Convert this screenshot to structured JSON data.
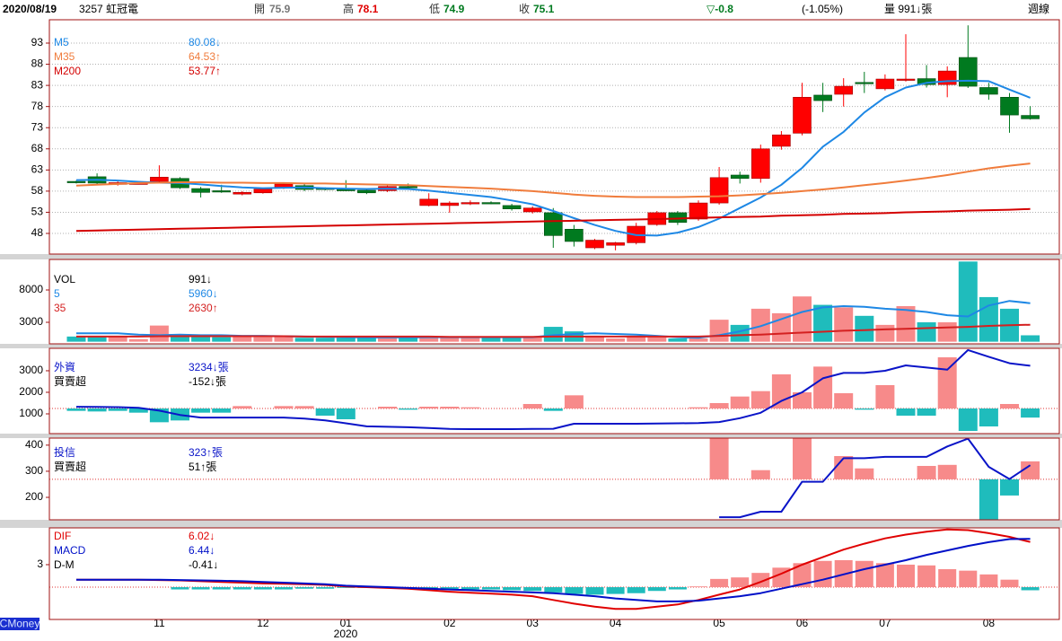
{
  "header": {
    "date": "2020/08/19",
    "stock": "3257 虹冠電",
    "open_label": "開",
    "high_label": "高",
    "low_label": "低",
    "close_label": "收",
    "change": "▽-0.8",
    "change_pct": "(-1.05%)",
    "volume": "量 991↓張",
    "period": "週線"
  },
  "brand": "CMoney",
  "chart_data": [
    {
      "type": "candlestick",
      "year_label": "2020",
      "categories": [
        null,
        null,
        null,
        null,
        "11",
        null,
        null,
        null,
        null,
        "12",
        null,
        null,
        null,
        "01",
        null,
        null,
        null,
        null,
        "02",
        null,
        null,
        null,
        "03",
        null,
        null,
        null,
        "04",
        null,
        null,
        null,
        null,
        "05",
        null,
        null,
        null,
        "06",
        null,
        null,
        null,
        "07",
        null,
        null,
        null,
        null,
        "08",
        null,
        null
      ],
      "open": [
        60.3,
        61.4,
        59.6,
        59.8,
        60.3,
        61.0,
        58.6,
        58.1,
        57.3,
        57.6,
        58.8,
        59.3,
        58.7,
        58.4,
        58.2,
        58.1,
        59.1,
        54.6,
        54.6,
        55.1,
        55.3,
        54.6,
        53.1,
        52.9,
        49.0,
        44.6,
        45.2,
        45.8,
        50.1,
        52.9,
        51.4,
        55.2,
        61.8,
        61.0,
        68.6,
        71.7,
        80.7,
        80.9,
        83.7,
        82.2,
        84.3,
        84.6,
        83.2,
        89.6,
        82.5,
        80.2,
        75.9
      ],
      "high": [
        60.5,
        62.2,
        60.3,
        60.1,
        64.1,
        61.3,
        59.0,
        59.5,
        58.0,
        58.8,
        60.0,
        59.7,
        58.9,
        60.6,
        58.6,
        59.4,
        59.8,
        57.5,
        55.6,
        55.8,
        55.6,
        55.0,
        54.4,
        54.0,
        50.0,
        46.7,
        46.0,
        50.5,
        53.3,
        53.3,
        55.8,
        63.7,
        62.6,
        69.0,
        72.2,
        83.6,
        83.6,
        84.7,
        86.2,
        85.6,
        95.1,
        87.8,
        87.5,
        97.2,
        83.6,
        81.2,
        78.1
      ],
      "low": [
        59.8,
        59.5,
        59.3,
        59.6,
        60.0,
        58.5,
        56.5,
        57.6,
        57.0,
        57.4,
        58.5,
        58.0,
        58.2,
        58.0,
        57.3,
        57.8,
        58.5,
        54.4,
        52.9,
        54.7,
        54.9,
        53.4,
        52.7,
        44.6,
        44.9,
        44.3,
        44.0,
        45.4,
        49.8,
        50.0,
        51.0,
        54.8,
        59.8,
        60.0,
        67.8,
        71.2,
        76.7,
        78.0,
        81.2,
        81.8,
        83.9,
        82.5,
        80.2,
        82.4,
        79.6,
        71.8,
        74.9
      ],
      "close": [
        60.0,
        59.9,
        60.0,
        59.9,
        61.3,
        58.8,
        57.7,
        58.0,
        57.7,
        58.5,
        59.7,
        58.4,
        58.5,
        58.3,
        57.6,
        59.1,
        58.8,
        56.1,
        55.2,
        55.3,
        55.1,
        53.8,
        54.0,
        47.5,
        46.1,
        46.4,
        45.8,
        49.7,
        52.9,
        50.6,
        55.2,
        61.2,
        61.0,
        68.0,
        71.3,
        80.2,
        79.4,
        82.8,
        83.5,
        84.5,
        84.5,
        83.2,
        86.4,
        82.8,
        80.9,
        76.0,
        75.1
      ],
      "up_color": "#ff0000",
      "down_color": "#007a1f",
      "series": [
        {
          "name": "M5",
          "kind": "line",
          "color": "#1e88e5",
          "legend_value": "80.08↓",
          "values": [
            60.6,
            60.7,
            60.5,
            60.2,
            60.0,
            59.9,
            59.6,
            59.2,
            58.9,
            58.7,
            58.8,
            58.9,
            58.7,
            58.6,
            58.5,
            58.6,
            58.5,
            58.1,
            57.6,
            57.1,
            56.6,
            55.8,
            54.9,
            53.3,
            51.6,
            50.0,
            48.6,
            47.6,
            47.5,
            48.2,
            49.5,
            51.5,
            54.0,
            56.5,
            59.5,
            63.5,
            68.5,
            72.0,
            76.6,
            80.2,
            82.5,
            83.6,
            84.0,
            84.1,
            84.0,
            82.0,
            80.08
          ]
        },
        {
          "name": "M35",
          "kind": "line",
          "color": "#f07c3c",
          "legend_value": "64.53↑",
          "values": [
            59.3,
            59.5,
            59.7,
            59.9,
            60.0,
            60.1,
            60.1,
            60.0,
            60.0,
            59.9,
            59.9,
            59.8,
            59.8,
            59.7,
            59.6,
            59.5,
            59.4,
            59.2,
            59.0,
            58.8,
            58.6,
            58.3,
            58.0,
            57.6,
            57.2,
            56.9,
            56.7,
            56.6,
            56.6,
            56.6,
            56.7,
            56.8,
            57.0,
            57.3,
            57.6,
            58.0,
            58.4,
            58.9,
            59.4,
            59.9,
            60.5,
            61.1,
            61.8,
            62.6,
            63.4,
            64.0,
            64.53
          ]
        },
        {
          "name": "M200",
          "kind": "line",
          "color": "#d40000",
          "legend_value": "53.77↑",
          "values": [
            48.6,
            48.7,
            48.8,
            48.9,
            49.0,
            49.1,
            49.2,
            49.3,
            49.4,
            49.5,
            49.6,
            49.7,
            49.8,
            49.9,
            50.0,
            50.1,
            50.2,
            50.3,
            50.4,
            50.5,
            50.6,
            50.7,
            50.8,
            50.9,
            51.0,
            51.1,
            51.2,
            51.3,
            51.4,
            51.5,
            51.7,
            51.8,
            51.9,
            52.0,
            52.2,
            52.3,
            52.4,
            52.6,
            52.7,
            52.8,
            53.0,
            53.1,
            53.2,
            53.4,
            53.5,
            53.6,
            53.77
          ]
        }
      ],
      "ylim": [
        43.12,
        98.52
      ],
      "yticks": [
        48,
        53,
        58,
        63,
        68,
        73,
        78,
        83,
        88,
        93
      ],
      "grid": true
    },
    {
      "type": "volume",
      "series": [
        {
          "name": "VOL",
          "kind": "bar",
          "up_color": "#f78a8a",
          "down_color": "#1fbcbc",
          "legend_value": "991↓",
          "values": [
            800,
            800,
            800,
            400,
            2500,
            900,
            900,
            700,
            900,
            700,
            800,
            600,
            600,
            600,
            600,
            700,
            600,
            800,
            700,
            700,
            700,
            600,
            800,
            2300,
            1600,
            800,
            500,
            800,
            700,
            500,
            500,
            3400,
            2600,
            5100,
            4400,
            7000,
            5700,
            5300,
            4000,
            2600,
            5500,
            3000,
            3000,
            12400,
            6900,
            5100,
            991
          ]
        },
        {
          "name": "5",
          "kind": "line",
          "color": "#1e88e5",
          "legend_value": "5960↓",
          "values": [
            1300,
            1300,
            1300,
            1100,
            1000,
            1100,
            1000,
            1000,
            900,
            900,
            850,
            800,
            750,
            700,
            650,
            650,
            650,
            700,
            700,
            700,
            700,
            700,
            700,
            1000,
            1200,
            1300,
            1200,
            1100,
            900,
            700,
            600,
            1000,
            1600,
            2400,
            3500,
            4600,
            5300,
            5500,
            5400,
            5100,
            4900,
            4600,
            4100,
            3900,
            5600,
            6300,
            5960
          ]
        },
        {
          "name": "35",
          "kind": "line",
          "color": "#d42020",
          "legend_value": "2630↑",
          "values": [
            800,
            800,
            800,
            800,
            850,
            850,
            850,
            850,
            850,
            850,
            850,
            800,
            800,
            800,
            800,
            800,
            800,
            800,
            750,
            750,
            750,
            750,
            750,
            800,
            800,
            800,
            800,
            800,
            800,
            800,
            800,
            900,
            1000,
            1100,
            1250,
            1400,
            1550,
            1700,
            1800,
            1900,
            2000,
            2100,
            2200,
            2300,
            2450,
            2550,
            2630
          ]
        }
      ],
      "ylim": [
        -330,
        12720
      ],
      "yticks": [
        3000,
        8000
      ],
      "grid": false
    },
    {
      "type": "flow",
      "series": [
        {
          "name": "外資",
          "kind": "line",
          "color": "#0a14c8",
          "legend_value": "3234↓張",
          "values": [
            1330,
            1320,
            1310,
            1280,
            1150,
            950,
            830,
            830,
            830,
            830,
            830,
            780,
            700,
            560,
            420,
            400,
            380,
            340,
            300,
            290,
            290,
            290,
            300,
            310,
            540,
            540,
            540,
            540,
            550,
            560,
            570,
            620,
            800,
            1050,
            1600,
            2000,
            2650,
            2900,
            2900,
            3000,
            3250,
            3150,
            3050,
            3960,
            3650,
            3350,
            3234
          ]
        },
        {
          "name": "買賣超",
          "kind": "bar",
          "axis": "y2",
          "pos_color": "#f78a8a",
          "neg_color": "#1fbcbc",
          "legend_value": "-152↓張",
          "values": [
            -40,
            -50,
            -40,
            -70,
            -230,
            -200,
            -70,
            -70,
            40,
            0,
            40,
            40,
            -120,
            -180,
            0,
            30,
            -20,
            30,
            30,
            20,
            0,
            0,
            75,
            -40,
            220,
            0,
            0,
            0,
            0,
            0,
            20,
            90,
            200,
            290,
            570,
            270,
            700,
            255,
            -20,
            390,
            -120,
            -120,
            855,
            -375,
            -300,
            75,
            -152
          ]
        }
      ],
      "ylim": [
        83,
        4040
      ],
      "yticks": [
        1000,
        2000,
        3000
      ],
      "y2lim": [
        -420,
        1005
      ],
      "grid": false
    },
    {
      "type": "flow",
      "series": [
        {
          "name": "投信",
          "kind": "line",
          "color": "#0a14c8",
          "legend_value": "323↑張",
          "values": [
            null,
            null,
            null,
            null,
            null,
            null,
            null,
            null,
            null,
            null,
            null,
            null,
            null,
            null,
            null,
            null,
            null,
            null,
            null,
            null,
            null,
            null,
            null,
            null,
            null,
            null,
            null,
            null,
            null,
            null,
            null,
            124,
            124,
            145,
            145,
            260,
            260,
            350,
            350,
            355,
            355,
            355,
            395,
            425,
            317,
            270,
            323
          ]
        },
        {
          "name": "買賣超",
          "kind": "bar",
          "axis": "y2",
          "pos_color": "#f78a8a",
          "neg_color": "#1fbcbc",
          "legend_value": "51↑張",
          "values": [
            0,
            0,
            0,
            0,
            0,
            0,
            0,
            0,
            0,
            0,
            0,
            0,
            0,
            0,
            0,
            0,
            0,
            0,
            0,
            0,
            0,
            0,
            0,
            0,
            0,
            0,
            0,
            0,
            0,
            0,
            0,
            118,
            0,
            26,
            0,
            118,
            0,
            66,
            31,
            0,
            0,
            38,
            41,
            0,
            -115,
            -46,
            51
          ]
        }
      ],
      "ylim": [
        114,
        427
      ],
      "yticks": [
        200,
        300,
        400
      ],
      "y2lim": [
        -115,
        117
      ],
      "grid": false
    },
    {
      "type": "macd",
      "series": [
        {
          "name": "DIF",
          "kind": "line",
          "color": "#e00000",
          "legend_value": "6.02↓",
          "values": [
            1.0,
            1.0,
            1.0,
            1.0,
            0.95,
            0.9,
            0.8,
            0.7,
            0.6,
            0.5,
            0.45,
            0.4,
            0.3,
            0.1,
            0,
            -0.1,
            -0.2,
            -0.4,
            -0.6,
            -0.75,
            -0.85,
            -1.0,
            -1.2,
            -1.7,
            -2.2,
            -2.6,
            -2.9,
            -2.9,
            -2.6,
            -2.3,
            -1.7,
            -1.0,
            -0.3,
            0.7,
            1.8,
            3.0,
            4.0,
            5.0,
            5.8,
            6.5,
            7.0,
            7.4,
            7.7,
            7.6,
            7.2,
            6.7,
            6.02
          ]
        },
        {
          "name": "MACD",
          "kind": "line",
          "color": "#0010c8",
          "legend_value": "6.44↓",
          "values": [
            1.0,
            1.0,
            1.0,
            1.0,
            1.0,
            0.95,
            0.9,
            0.85,
            0.8,
            0.7,
            0.6,
            0.5,
            0.4,
            0.2,
            0.1,
            0,
            -0.1,
            -0.2,
            -0.3,
            -0.4,
            -0.5,
            -0.6,
            -0.7,
            -0.8,
            -1.0,
            -1.2,
            -1.5,
            -1.7,
            -1.9,
            -1.9,
            -1.8,
            -1.5,
            -1.2,
            -0.8,
            -0.2,
            0.4,
            1.0,
            1.7,
            2.4,
            3.0,
            3.6,
            4.3,
            4.9,
            5.5,
            6.0,
            6.4,
            6.44
          ]
        },
        {
          "name": "D-M",
          "kind": "bar",
          "pos_color": "#f78a8a",
          "neg_color": "#1fbcbc",
          "legend_value": "-0.41↓",
          "values": [
            0,
            0,
            0,
            0,
            0,
            -0.3,
            -0.3,
            -0.3,
            -0.3,
            -0.3,
            -0.3,
            -0.2,
            -0.2,
            -0.1,
            -0.1,
            -0.1,
            -0.1,
            -0.2,
            -0.3,
            -0.3,
            -0.3,
            -0.4,
            -0.5,
            -0.7,
            -0.9,
            -1.0,
            -0.9,
            -0.8,
            -0.5,
            -0.3,
            0.1,
            1.1,
            1.3,
            1.9,
            2.6,
            3.2,
            3.5,
            3.6,
            3.5,
            3.2,
            3.0,
            2.9,
            2.4,
            2.2,
            1.7,
            1.0,
            -0.41
          ]
        }
      ],
      "ylim": [
        -4.3,
        7.9
      ],
      "yticks": [
        3
      ],
      "grid": false
    }
  ]
}
